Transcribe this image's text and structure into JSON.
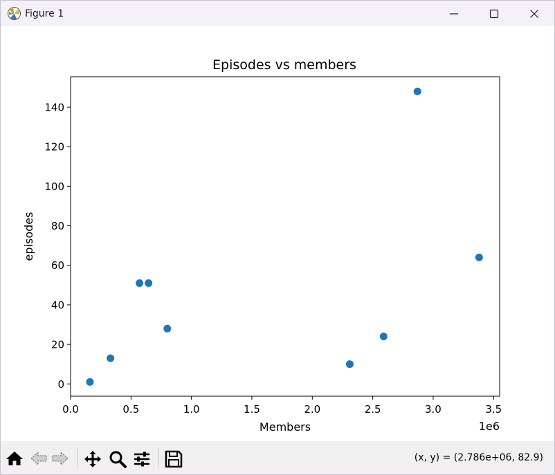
{
  "window": {
    "title": "Figure 1",
    "controls": [
      "minimize",
      "maximize",
      "close"
    ]
  },
  "toolbar": {
    "buttons": [
      "home-icon",
      "back-icon",
      "forward-icon",
      "pan-icon",
      "zoom-icon",
      "configure-subplots-icon",
      "save-icon"
    ],
    "coords_text": "(x, y) = (2.786e+06, 82.9)"
  },
  "chart_data": {
    "type": "scatter",
    "title": "Episodes vs members",
    "xlabel": "Members",
    "ylabel": "episodes",
    "x_offset_label": "1e6",
    "x_tick_labels": [
      "0.0",
      "0.5",
      "1.0",
      "1.5",
      "2.0",
      "2.5",
      "3.0",
      "3.5"
    ],
    "y_tick_labels": [
      "0",
      "20",
      "40",
      "60",
      "80",
      "100",
      "120",
      "140"
    ],
    "xlim": [
      0,
      3.55
    ],
    "ylim": [
      -6.2,
      155.4
    ],
    "x_scale_multiplier": 1000000,
    "marker_color": "#1f77b4",
    "grid": false,
    "points": [
      {
        "x": 0.16,
        "y": 1
      },
      {
        "x": 0.33,
        "y": 13
      },
      {
        "x": 0.57,
        "y": 51
      },
      {
        "x": 0.645,
        "y": 51
      },
      {
        "x": 0.8,
        "y": 28
      },
      {
        "x": 2.31,
        "y": 10
      },
      {
        "x": 2.59,
        "y": 24
      },
      {
        "x": 2.87,
        "y": 148
      },
      {
        "x": 3.38,
        "y": 64
      }
    ]
  }
}
